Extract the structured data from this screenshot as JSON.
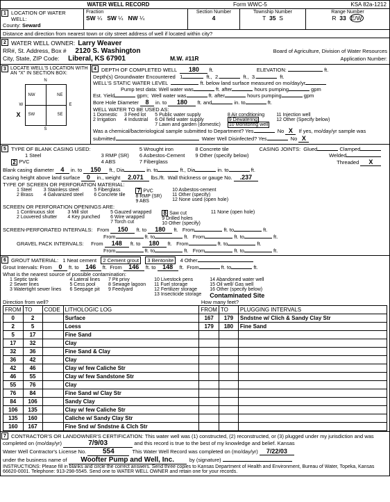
{
  "form_header": {
    "title": "WATER WELL RECORD",
    "form_no": "Form WWC-5",
    "ksa": "KSA 82a-1212"
  },
  "sec1": {
    "title": "LOCATION OF WATER WELL:",
    "county_label": "County:",
    "county": "Seward",
    "fraction_label": "Fraction",
    "frac1": "SW",
    "frac_unit1": "¼",
    "frac2": "SW",
    "frac_unit2": "¼",
    "frac3": "NW",
    "frac_unit3": "¼",
    "section_label": "Section Number",
    "section": "4",
    "township_label": "Township Number",
    "township_t": "T",
    "township": "35",
    "township_s": "S",
    "range_label": "Range Number",
    "range_r": "R",
    "range": "33",
    "range_ew": "E/W",
    "distance_label": "Distance and direction from nearest town or city street address of well if located within city?"
  },
  "sec2": {
    "title": "WATER WELL OWNER:",
    "owner": "Larry Weaver",
    "addr_label": "RR#, St. Address, Box #",
    "addr": "2120 S. Washington",
    "csz_label": "City, State, ZIP Code:",
    "csz": "Liberal, KS  67901",
    "mw": "M.W. #11R",
    "board": "Board of Agriculture, Division of Water Resources",
    "app_label": "Application Number:"
  },
  "sec3": {
    "title": "LOCATE WELL'S LOCATION WITH AN \"X\" IN SECTION BOX:",
    "n": "N",
    "s": "S",
    "e": "E",
    "w": "W",
    "nw": "NW",
    "ne": "NE",
    "sw": "SW",
    "se": "SE",
    "x": "X"
  },
  "sec4": {
    "title": "DEPTH OF COMPLETED WELL",
    "depth": "180",
    "depth_unit": "ft.",
    "elev_label": "ELEVATION:",
    "elev_unit": "ft.",
    "depths_label": "Depth(s) Groundwater Encountered",
    "gw1": "1",
    "gw2": "2.",
    "gw3": "3.",
    "swl_label": "WELL'S STATIC WATER LEVEL",
    "swl_unit": "ft. below land surface measured on mo/day/yr",
    "pump_label": "Pump test data:",
    "well_water": "Well water was",
    "ft_after": "ft. after",
    "hours_pumping": "hours pumping",
    "gpm": "gpm",
    "est_yield": "Est. Yield",
    "gpm2": "gpm;",
    "bore_label": "Bore Hole Diameter",
    "bore": "8",
    "in_to": "in. to",
    "bore_to": "180",
    "ft_and": "ft. and",
    "use_label": "WELL WATER TO BE USED AS:",
    "uses": [
      "1  Domestic",
      "2  Irrigation",
      "3  Feed lot",
      "4  Industrial",
      "5  Public water supply",
      "6  Oil field water supply",
      "7  Lawn and garden (domestic)",
      "8  Air conditioning",
      "9  Dewatering",
      "10  Monitoring well",
      "11  Injection well",
      "12  Other (Specify below)"
    ],
    "chem_label": "Was a chemical/bacteriological sample submitted to Department?  Yes",
    "chem_no": "No",
    "chem_x": "X",
    "if_yes": "If yes, mo/day/yr sample was",
    "submitted": "submitted",
    "disinfect": "Water Well Disinfected?  Yes",
    "disinfect_no": "No",
    "disinfect_x": "X"
  },
  "sec5": {
    "title": "TYPE OF BLANK CASING USED:",
    "types": [
      "1  Steel",
      "2  PVC",
      "3  RMP (SR)",
      "4  ABS",
      "5  Wrought iron",
      "6  Asbestos-Cement",
      "7  Fiberglass",
      "8  Concrete tile",
      "9  Other (specify below)"
    ],
    "joints_label": "CASING JOINTS:",
    "glued": "Glued",
    "clamped": "Clamped",
    "welded": "Welded",
    "threaded": "Threaded",
    "threaded_x": "X",
    "casing_dia_label": "Blank casing diameter",
    "casing_dia": "4",
    "casing_to": "150",
    "height_label": "Casing height above land surface",
    "height": "0",
    "weight_label": "in., weight",
    "weight": "2.071",
    "lbs": "lbs./ft.",
    "wall_label": "Wall thickness or gauge No.",
    "wall": ".237",
    "screen_label": "TYPE OF SCREEN OR PERFORATION MATERIAL:",
    "screen_types": [
      "1  Steel",
      "2  Brass",
      "3  Stainless steel",
      "4  Galvanized steel",
      "5  Fiberglass",
      "6  Concrete tile",
      "7  PVC",
      "8  RMP (SR)",
      "9  ABS",
      "10  Asbestos-cement",
      "11  Other (specify)",
      "12  None used (open hole)"
    ],
    "open_label": "SCREEN OR PERFORATION OPENINGS ARE:",
    "openings": [
      "1  Continuous slot",
      "2  Louvered shutter",
      "3  Mill slot",
      "4  Key punched",
      "5  Gauzed wrapped",
      "6  Wire wrapped",
      "7  Torch cut",
      "8  Saw cut",
      "9  Drilled holes",
      "10  Other (specify)",
      "11  None (open hole)"
    ],
    "spi_label": "SCREEN-PERFORATED INTERVALS:",
    "spi_from": "150",
    "spi_to": "180",
    "gpi_label": "GRAVEL PACK INTERVALS:",
    "gpi_from": "148",
    "gpi_to": "180",
    "from": "From",
    "to": "ft. to",
    "ft": "ft.",
    "dia": "Dia",
    "in": "in.",
    "into": "in. to"
  },
  "sec6": {
    "title": "GROUT MATERIAL:",
    "mats": [
      "1  Neat cement",
      "2  Cement grout",
      "3  Bentonite",
      "4  Other"
    ],
    "gi_label": "Grout Intervals:  From",
    "gi1_from": "0",
    "gi1_to": "146",
    "gi2_from": "146",
    "gi2_to": "148",
    "source_label": "What is the nearest source of possible contamination:",
    "sources": [
      "1  Septic tank",
      "2  Sewer lines",
      "3  Watertight sewer lines",
      "4  Lateral lines",
      "5  Cess pool",
      "6  Seepage pit",
      "7  Pit privy",
      "8  Sewage lagoon",
      "9  Feedyard",
      "10  Livestock pens",
      "11  Fuel storage",
      "12  Fertilizer storage",
      "13  Insecticide storage",
      "14  Abandoned water well",
      "15  Oil well/ Gas well",
      "16  Other (specify below)"
    ],
    "site": "Contaminated Site",
    "dir_label": "Direction from well?",
    "feet_label": "How many feet?",
    "log_headers": [
      "FROM",
      "TO",
      "CODE",
      "LITHOLOGIC LOG",
      "FROM",
      "TO",
      "PLUGGING INTERVALS"
    ],
    "log_rows": [
      [
        "0",
        "2",
        "",
        "Surface",
        "167",
        "179",
        "Sndstne w/ Clich & Sandy Clay Str"
      ],
      [
        "2",
        "5",
        "",
        "Loess",
        "179",
        "180",
        "Fine Sand"
      ],
      [
        "5",
        "17",
        "",
        "Fine Sand",
        "",
        "",
        ""
      ],
      [
        "17",
        "32",
        "",
        "Clay",
        "",
        "",
        ""
      ],
      [
        "32",
        "36",
        "",
        "Fine Sand & Clay",
        "",
        "",
        ""
      ],
      [
        "36",
        "42",
        "",
        "Clay",
        "",
        "",
        ""
      ],
      [
        "42",
        "46",
        "",
        "Clay w/ few Caliche Str",
        "",
        "",
        ""
      ],
      [
        "46",
        "55",
        "",
        "Clay w/ few Sandstone Str",
        "",
        "",
        ""
      ],
      [
        "55",
        "76",
        "",
        "Clay",
        "",
        "",
        ""
      ],
      [
        "76",
        "84",
        "",
        "Fine Sand w/ Clay Str",
        "",
        "",
        ""
      ],
      [
        "84",
        "106",
        "",
        "Sandy Clay",
        "",
        "",
        ""
      ],
      [
        "106",
        "135",
        "",
        "Clay w/ few Caliche Str",
        "",
        "",
        ""
      ],
      [
        "135",
        "160",
        "",
        "Caliche w/ Sandy Clay Str",
        "",
        "",
        ""
      ],
      [
        "160",
        "167",
        "",
        "Fine Snd w/ Sndstne & Clch Str",
        "",
        "",
        ""
      ]
    ]
  },
  "sec7": {
    "title": "CONTRACTOR'S OR LANDOWNER'S CERTIFICATION:",
    "cert_text": "This water well was  (1) constructed, (2) reconstructed, or (3) plugged under my jurisdiction and was",
    "completed_label": "completed on (mo/day/yr)",
    "completed": "7/9/03",
    "record_text": "and this record is true to the best of my knowledge and belief.  Kansas",
    "lic_label": "Water Well Contractor's License No.",
    "lic": "554",
    "comp_label": "This Water Well Record was completed on (mo/day/yr)",
    "comp_date": "7/22/03",
    "bus_label": "under the business name of",
    "bus": "Woofter Pump and Well, Inc.",
    "sig_label": "by (signature)",
    "instructions": "INSTRUCTIONS:  Please fill in blanks and circle the correct answers.  Send three copies to Kansas Department of Health and Environment, Bureau of Water, Topeka, Kansas 66620-0001.  Telephone: 913-298-5545.  Send one to WATER WELL OWNER and retain one for your records."
  }
}
